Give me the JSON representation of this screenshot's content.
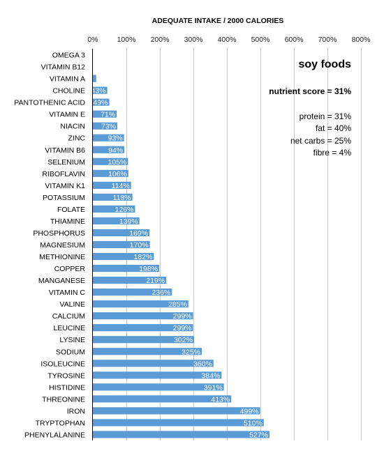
{
  "chart_data": {
    "type": "bar",
    "orientation": "horizontal",
    "title": "ADEQUATE INTAKE / 2000 CALORIES",
    "xlabel": "",
    "ylabel": "",
    "xlim": [
      0,
      800
    ],
    "x_ticks": [
      "0%",
      "100%",
      "200%",
      "300%",
      "400%",
      "500%",
      "600%",
      "700%",
      "800%"
    ],
    "grid": true,
    "bar_color": "#5b9bd5",
    "categories": [
      "OMEGA 3",
      "VITAMIN B12",
      "VITAMIN A",
      "CHOLINE",
      "PANTOTHENIC ACID",
      "VITAMIN E",
      "NIACIN",
      "ZINC",
      "VITAMIN B6",
      "SELENIUM",
      "RIBOFLAVIN",
      "VITAMIN K1",
      "POTASSIUM",
      "FOLATE",
      "THIAMINE",
      "PHOSPHORUS",
      "MAGNESIUM",
      "METHIONINE",
      "COPPER",
      "MANGANESE",
      "VITAMIN C",
      "VALINE",
      "CALCIUM",
      "LEUCINE",
      "LYSINE",
      "SODIUM",
      "ISOLEUCINE",
      "TYROSINE",
      "HISTIDINE",
      "THREONINE",
      "IRON",
      "TRYPTOPHAN",
      "PHENYLALANINE"
    ],
    "values": [
      0,
      0,
      10,
      43,
      49,
      71,
      73,
      93,
      94,
      105,
      106,
      114,
      118,
      126,
      139,
      169,
      170,
      182,
      198,
      219,
      236,
      285,
      299,
      299,
      302,
      325,
      360,
      384,
      391,
      413,
      499,
      510,
      527
    ],
    "data_labels": [
      "",
      "",
      "",
      "43%",
      "49%",
      "71%",
      "73%",
      "93%",
      "94%",
      "105%",
      "106%",
      "114%",
      "118%",
      "126%",
      "139%",
      "169%",
      "170%",
      "182%",
      "198%",
      "219%",
      "236%",
      "285%",
      "299%",
      "299%",
      "302%",
      "325%",
      "360%",
      "384%",
      "391%",
      "413%",
      "499%",
      "510%",
      "527%"
    ]
  },
  "annotations": {
    "heading": "soy foods",
    "nutrient_score": "nutrient score = 31%",
    "protein": "protein = 31%",
    "fat": "fat = 40%",
    "net_carbs": "net carbs = 25%",
    "fibre": "fibre = 4%"
  }
}
